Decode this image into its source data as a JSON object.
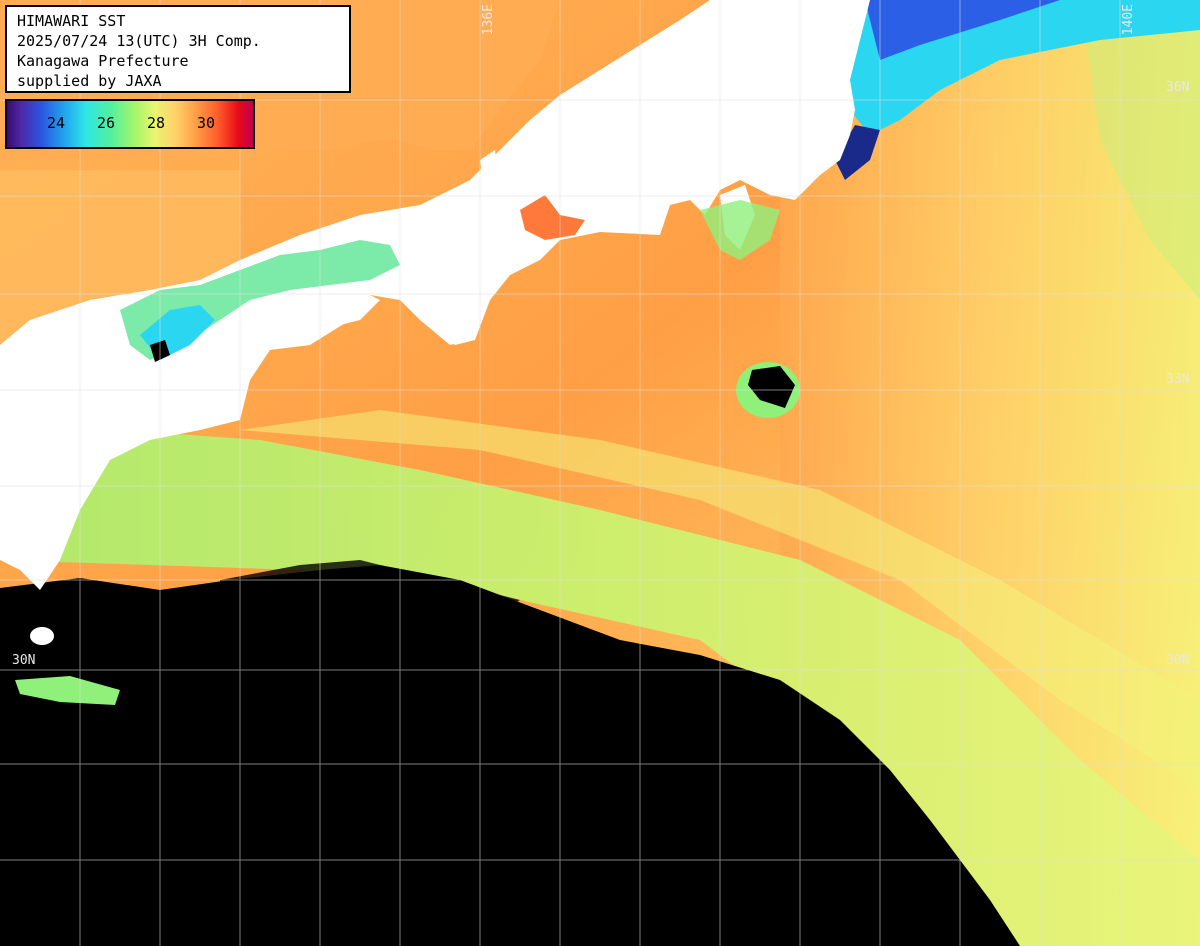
{
  "header": {
    "line1": "HIMAWARI SST",
    "line2": "2025/07/24 13(UTC) 3H Comp.",
    "line3": "Kanagawa Prefecture",
    "line4": "supplied by JAXA"
  },
  "legend": {
    "ticks": [
      "24",
      "26",
      "28",
      "30"
    ]
  },
  "grid_labels": {
    "lon_136": "136E",
    "lon_140": "140E",
    "lat_36": "36N",
    "lat_33": "33N",
    "lat_30_left": "30N",
    "lat_30_right": "30N"
  },
  "colors": {
    "land": "#ffffff",
    "no_data": "#000000",
    "warm_sea": "#ff9f45",
    "mid_sea": "#fff07a",
    "cool_sea": "#9ff07a",
    "cold_sea": "#2ad6f0",
    "gridline": "#e0e0e0"
  }
}
